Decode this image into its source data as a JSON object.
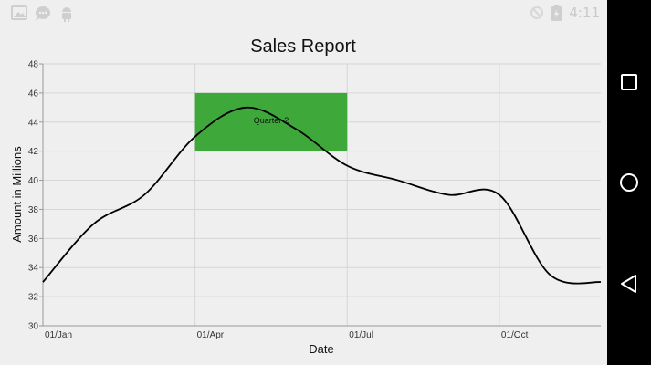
{
  "status_bar": {
    "time": "4:11",
    "left_icons": [
      "image-icon",
      "chat-bubble-icon",
      "android-icon"
    ],
    "right_icons": [
      "signal-off-icon",
      "battery-charging-icon"
    ]
  },
  "nav_bar": {
    "buttons": [
      {
        "name": "recent-apps-button",
        "icon": "square-icon"
      },
      {
        "name": "home-button",
        "icon": "circle-icon"
      },
      {
        "name": "back-button",
        "icon": "triangle-back-icon"
      }
    ]
  },
  "chart_data": {
    "type": "line",
    "title": "Sales Report",
    "xlabel": "Date",
    "ylabel": "Amount in Millions",
    "x_tick_labels": [
      "01/Jan",
      "01/Apr",
      "01/Jul",
      "01/Oct"
    ],
    "x_tick_positions": [
      0,
      3,
      6,
      9
    ],
    "xlim": [
      0,
      11
    ],
    "ylim": [
      30,
      48
    ],
    "y_ticks": [
      30,
      32,
      34,
      36,
      38,
      40,
      42,
      44,
      46,
      48
    ],
    "grid": true,
    "series": [
      {
        "color": "#000000",
        "x": [
          0,
          1,
          2,
          3,
          4,
          5,
          6,
          7,
          8,
          9,
          10,
          11
        ],
        "y": [
          33,
          37,
          39,
          43,
          45,
          43.5,
          41,
          40,
          39,
          39,
          33.5,
          33
        ]
      }
    ],
    "annotations": [
      {
        "type": "band",
        "label": "Quarter-2",
        "x_start": 3,
        "x_end": 6,
        "y_start": 42,
        "y_end": 46,
        "color": "#3ea83a"
      }
    ]
  }
}
